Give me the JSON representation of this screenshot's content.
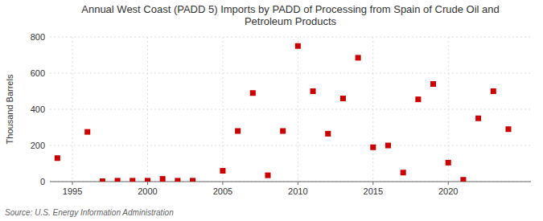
{
  "chart_data": {
    "type": "scatter",
    "title": "Annual West Coast (PADD 5) Imports by PADD of Processing from Spain of Crude Oil and\nPetroleum Products",
    "y_label": "Thousand Barrels",
    "source": "Source: U.S. Energy Information Administration",
    "x": [
      1994,
      1996,
      1997,
      1998,
      1999,
      2000,
      2001,
      2002,
      2003,
      2005,
      2006,
      2007,
      2008,
      2009,
      2010,
      2011,
      2012,
      2013,
      2014,
      2015,
      2016,
      2017,
      2018,
      2019,
      2020,
      2021,
      2022,
      2023,
      2024
    ],
    "values": [
      130,
      275,
      2,
      5,
      5,
      5,
      15,
      5,
      5,
      60,
      280,
      490,
      35,
      280,
      750,
      500,
      265,
      460,
      685,
      190,
      200,
      50,
      455,
      540,
      105,
      10,
      350,
      500,
      290
    ],
    "color": "#cc0000",
    "marker": "square",
    "xlim": [
      1993.5,
      2025.5
    ],
    "ylim": [
      0,
      800
    ],
    "xticks": [
      1995,
      2000,
      2005,
      2010,
      2015,
      2020
    ],
    "yticks": [
      0,
      200,
      400,
      600,
      800
    ],
    "grid": true
  }
}
